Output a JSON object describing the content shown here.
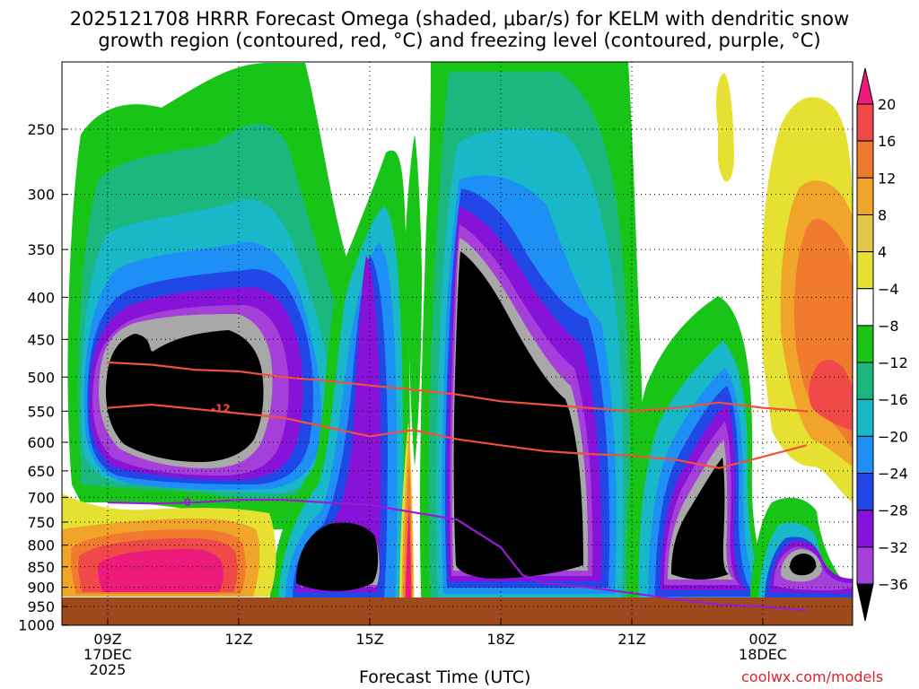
{
  "title_line1": "2025121708 HRRR Forecast Omega (shaded, μbar/s) for KELM with dendritic snow",
  "title_line2": "growth region (contoured, red, °C) and freezing level (contoured, purple, °C)",
  "credit": "coolwx.com/models",
  "chart_data": {
    "type": "heatmap",
    "xlabel": "Forecast Time (UTC)",
    "x_ticks": [
      {
        "label": "09Z",
        "sub": "17DEC",
        "sub2": "2025"
      },
      {
        "label": "12Z",
        "sub": "",
        "sub2": ""
      },
      {
        "label": "15Z",
        "sub": "",
        "sub2": ""
      },
      {
        "label": "18Z",
        "sub": "",
        "sub2": ""
      },
      {
        "label": "21Z",
        "sub": "",
        "sub2": ""
      },
      {
        "label": "00Z",
        "sub": "18DEC",
        "sub2": ""
      }
    ],
    "y_ticks": [
      "250",
      "300",
      "350",
      "400",
      "450",
      "500",
      "550",
      "600",
      "650",
      "700",
      "750",
      "800",
      "850",
      "900",
      "950",
      "1000"
    ],
    "y_axis": "pressure (hPa), inverted log scale",
    "grid": "dotted",
    "colorbar": {
      "labels": [
        "20",
        "16",
        "12",
        "8",
        "4",
        "−4",
        "−8",
        "−12",
        "−16",
        "−20",
        "−24",
        "−28",
        "−32",
        "−36"
      ],
      "colors": [
        "#ec1b7a",
        "#f04949",
        "#f07a2e",
        "#f0a429",
        "#e4c84a",
        "#e6e033",
        "#ffffff",
        "#19c419",
        "#1ab87f",
        "#19b8c8",
        "#1e8ff5",
        "#2147e6",
        "#8712d8",
        "#a43fd9",
        "#a8a8a8",
        "#000000"
      ]
    },
    "contour_labels": [
      "-12",
      "0"
    ],
    "dgz_contours": [
      {
        "name": "-12",
        "points": [
          [
            9,
            545
          ],
          [
            10,
            540
          ],
          [
            11.5,
            550
          ],
          [
            13,
            560
          ],
          [
            14,
            575
          ],
          [
            15,
            590
          ],
          [
            16,
            580
          ],
          [
            17,
            595
          ],
          [
            18,
            605
          ],
          [
            19,
            615
          ],
          [
            20,
            620
          ],
          [
            21,
            623
          ],
          [
            22,
            630
          ],
          [
            23,
            645
          ],
          [
            24,
            625
          ],
          [
            25,
            605
          ]
        ]
      },
      {
        "name": "-18",
        "points": [
          [
            9,
            480
          ],
          [
            10,
            483
          ],
          [
            11,
            490
          ],
          [
            12,
            492
          ],
          [
            13,
            500
          ],
          [
            14,
            505
          ],
          [
            15,
            512
          ],
          [
            16,
            518
          ],
          [
            17,
            525
          ],
          [
            18,
            535
          ],
          [
            19,
            540
          ],
          [
            20,
            545
          ],
          [
            21,
            550
          ],
          [
            22,
            545
          ],
          [
            23,
            537
          ],
          [
            24,
            545
          ],
          [
            25,
            550
          ]
        ]
      }
    ],
    "freezing_level": {
      "name": "0",
      "points": [
        [
          9,
          710
        ],
        [
          10,
          712
        ],
        [
          11,
          710
        ],
        [
          12,
          705
        ],
        [
          13,
          705
        ],
        [
          14,
          710
        ],
        [
          15,
          715
        ],
        [
          16,
          730
        ],
        [
          17,
          745
        ],
        [
          18,
          805
        ],
        [
          18.5,
          870
        ],
        [
          19,
          890
        ],
        [
          20,
          900
        ],
        [
          21,
          915
        ],
        [
          22,
          930
        ],
        [
          23,
          945
        ],
        [
          24,
          950
        ],
        [
          25,
          960
        ]
      ]
    }
  }
}
